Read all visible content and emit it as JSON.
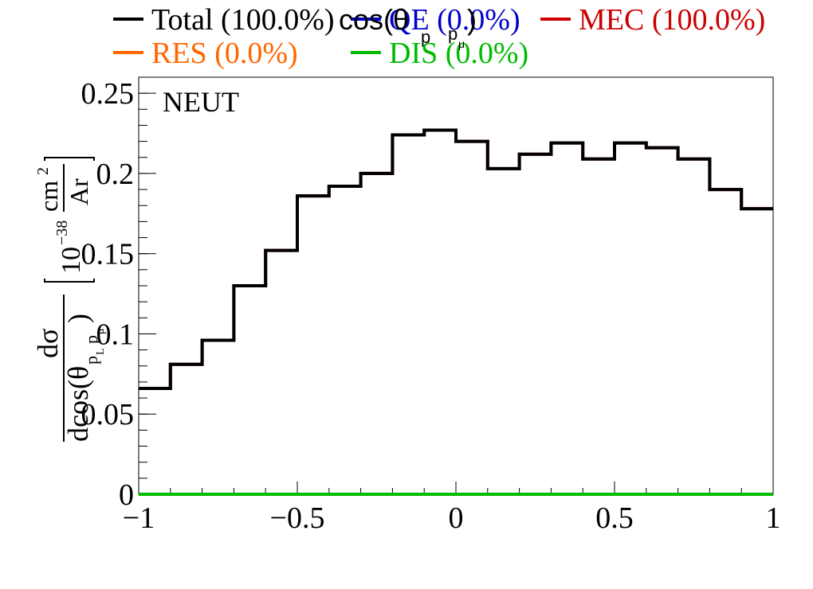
{
  "chart_data": {
    "type": "line",
    "title": "cos(θ_{p_L,p_μ})",
    "title_main": "cos(θ",
    "title_sub_a": "p",
    "title_sub_b": "p",
    "title_sub_c": "μ",
    "title_close": ")",
    "annotation": "NEUT",
    "xlim": [
      -1,
      1
    ],
    "ylim": [
      0,
      0.26
    ],
    "x_ticks": [
      {
        "value": -1,
        "label": "−1"
      },
      {
        "value": -0.5,
        "label": "−0.5"
      },
      {
        "value": 0,
        "label": "0"
      },
      {
        "value": 0.5,
        "label": "0.5"
      },
      {
        "value": 1,
        "label": "1"
      }
    ],
    "y_ticks": [
      {
        "value": 0,
        "label": "0"
      },
      {
        "value": 0.05,
        "label": "0.05"
      },
      {
        "value": 0.1,
        "label": "0.1"
      },
      {
        "value": 0.15,
        "label": "0.15"
      },
      {
        "value": 0.2,
        "label": "0.2"
      },
      {
        "value": 0.25,
        "label": "0.25"
      }
    ],
    "ylabel": {
      "numerator": "dσ",
      "denominator": "dcos(θ",
      "sub_1": "p",
      "sub_L": "L",
      "sub_2": "p",
      "sub_mu": "μ",
      "close": ")",
      "unit_base": "10",
      "unit_exp": "−38",
      "unit_cm": "cm",
      "unit_cm_exp": "2",
      "unit_den": "Ar"
    },
    "bin_edges": [
      -1.0,
      -0.9,
      -0.8,
      -0.7,
      -0.6,
      -0.5,
      -0.4,
      -0.3,
      -0.2,
      -0.1,
      0.0,
      0.1,
      0.2,
      0.3,
      0.4,
      0.5,
      0.6,
      0.7,
      0.8,
      0.9,
      1.0
    ],
    "series": [
      {
        "name": "Total (100.0%)",
        "color": "#000000",
        "values": [
          0.066,
          0.081,
          0.096,
          0.13,
          0.152,
          0.186,
          0.192,
          0.2,
          0.224,
          0.227,
          0.22,
          0.203,
          0.212,
          0.219,
          0.209,
          0.219,
          0.216,
          0.209,
          0.19,
          0.178
        ]
      },
      {
        "name": "QE (0.0%)",
        "color": "#0000cc",
        "values": [
          0,
          0,
          0,
          0,
          0,
          0,
          0,
          0,
          0,
          0,
          0,
          0,
          0,
          0,
          0,
          0,
          0,
          0,
          0,
          0
        ]
      },
      {
        "name": "MEC (100.0%)",
        "color": "#cc0000",
        "values": [
          0.066,
          0.081,
          0.096,
          0.13,
          0.152,
          0.186,
          0.192,
          0.2,
          0.224,
          0.227,
          0.22,
          0.203,
          0.212,
          0.219,
          0.209,
          0.219,
          0.216,
          0.209,
          0.19,
          0.178
        ]
      },
      {
        "name": "RES (0.0%)",
        "color": "#ff6600",
        "values": [
          0,
          0,
          0,
          0,
          0,
          0,
          0,
          0,
          0,
          0,
          0,
          0,
          0,
          0,
          0,
          0,
          0,
          0,
          0,
          0
        ]
      },
      {
        "name": "DIS (0.0%)",
        "color": "#00bb00",
        "values": [
          0,
          0,
          0,
          0,
          0,
          0,
          0,
          0,
          0,
          0,
          0,
          0,
          0,
          0,
          0,
          0,
          0,
          0,
          0,
          0
        ]
      }
    ],
    "grid": false,
    "legend": "top"
  }
}
